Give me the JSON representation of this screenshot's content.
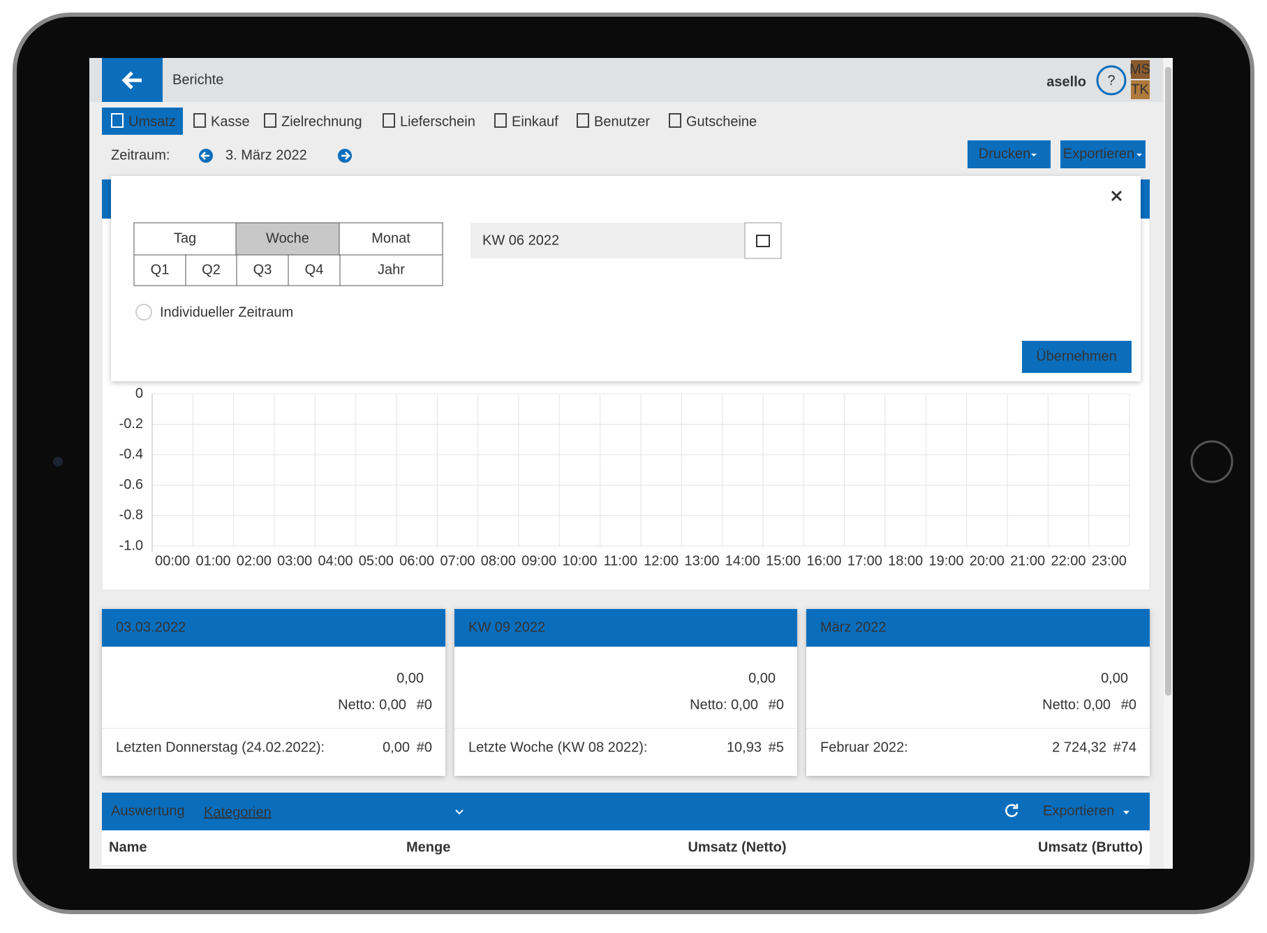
{
  "header": {
    "title": "Berichte",
    "logo": "asello",
    "user_badges": [
      "MS",
      "TK"
    ]
  },
  "tabs": [
    "Umsatz",
    "Kasse",
    "Zielrechnung",
    "Lieferschein",
    "Einkauf",
    "Benutzer",
    "Gutscheine"
  ],
  "period": {
    "label": "Zeitraum:",
    "value": "3. März 2022"
  },
  "buttons": {
    "print": "Drucken",
    "export": "Exportieren"
  },
  "picker": {
    "top": [
      "Tag",
      "Woche",
      "Monat"
    ],
    "bottom": [
      "Q1",
      "Q2",
      "Q3",
      "Q4",
      "Jahr"
    ],
    "custom": "Individueller Zeitraum",
    "input": "KW 06 2022",
    "apply": "Übernehmen"
  },
  "chart": {
    "ylim": [
      -1,
      0
    ],
    "yticks": [
      0,
      -0.2,
      -0.4,
      -0.6,
      -0.8,
      {
        "value": -1,
        "label": "-1.0"
      }
    ],
    "categories": [
      "00:00",
      "01:00",
      "02:00",
      "03:00",
      "04:00",
      "05:00",
      "06:00",
      "07:00",
      "08:00",
      "09:00",
      "10:00",
      "11:00",
      "12:00",
      "13:00",
      "14:00",
      "15:00",
      "16:00",
      "17:00",
      "18:00",
      "19:00",
      "20:00",
      "21:00",
      "22:00",
      "23:00"
    ],
    "grid": true
  },
  "cards": [
    {
      "title": "03.03.2022",
      "total": "0,00",
      "net": "Netto: 0,00",
      "net_count": "#0",
      "compare": "Letzten Donnerstag (24.02.2022):",
      "compare_value": "0,00",
      "compare_count": "#0"
    },
    {
      "title": "KW 09 2022",
      "total": "0,00",
      "net": "Netto: 0,00",
      "net_count": "#0",
      "compare": "Letzte Woche (KW 08 2022):",
      "compare_value": "10,93",
      "compare_count": "#5"
    },
    {
      "title": "März 2022",
      "total": "0,00",
      "net": "Netto: 0,00",
      "net_count": "#0",
      "compare": "Februar 2022:",
      "compare_value": "2 724,32",
      "compare_count": "#74"
    }
  ],
  "analysis": {
    "label": "Auswertung",
    "dimension": "Kategorien",
    "export": "Exportieren",
    "columns": [
      "Name",
      "Menge",
      "Umsatz (Netto)",
      "Umsatz (Brutto)"
    ]
  }
}
